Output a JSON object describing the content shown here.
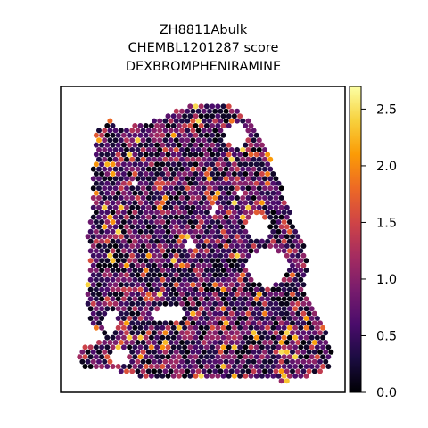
{
  "chart_data": {
    "type": "scatter",
    "subtype": "spatial-hexbin",
    "title_lines": [
      "ZH8811Abulk",
      "CHEMBL1201287 score",
      "DEXBROMPHENIRAMINE"
    ],
    "xlabel": "",
    "ylabel": "",
    "axes_ticks_visible": false,
    "grid": false,
    "colormap": "inferno",
    "colorbar": {
      "placement": "right",
      "range": [
        0.0,
        2.7
      ],
      "ticks": [
        0.0,
        0.5,
        1.0,
        1.5,
        2.0,
        2.5
      ],
      "tick_labels": [
        "0.0",
        "0.5",
        "1.0",
        "1.5",
        "2.0",
        "2.5"
      ]
    },
    "colorbar_stops": [
      "#000004",
      "#1b0c41",
      "#4a0c6b",
      "#781c6d",
      "#a52c60",
      "#cf4446",
      "#ed6925",
      "#fb9b06",
      "#f7d13d",
      "#fcffa4"
    ],
    "value_distribution_note": "mostly 0.0-1.2, sparse highs up to ~2.5"
  }
}
